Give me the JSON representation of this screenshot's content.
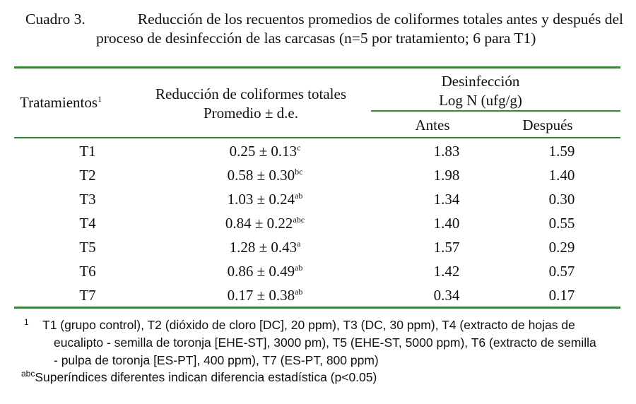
{
  "caption": {
    "number": "Cuadro 3.",
    "line1": "Reducción de los recuentos promedios de coliformes totales antes y después del",
    "line2": "proceso de desinfección de las carcasas (n=5 por tratamiento; 6 para T1)"
  },
  "table": {
    "headers": {
      "treatment": "Tratamientos",
      "treatment_sup": "1",
      "reduction_line1": "Reducción de coliformes totales",
      "reduction_line2": "Promedio ± d.e.",
      "disinfection_line1": "Desinfección",
      "disinfection_line2": "Log N (ufg/g)",
      "before": "Antes",
      "after": "Después"
    },
    "rows": [
      {
        "treatment": "T1",
        "reduction": "0.25 ± 0.13",
        "sup": "c",
        "before": "1.83",
        "after": "1.59"
      },
      {
        "treatment": "T2",
        "reduction": "0.58 ± 0.30",
        "sup": "bc",
        "before": "1.98",
        "after": "1.40"
      },
      {
        "treatment": "T3",
        "reduction": "1.03 ± 0.24",
        "sup": "ab",
        "before": "1.34",
        "after": "0.30"
      },
      {
        "treatment": "T4",
        "reduction": "0.84 ± 0.22",
        "sup": "abc",
        "before": "1.40",
        "after": "0.55"
      },
      {
        "treatment": "T5",
        "reduction": "1.28 ± 0.43",
        "sup": "a",
        "before": "1.57",
        "after": "0.29"
      },
      {
        "treatment": "T6",
        "reduction": "0.86 ± 0.49",
        "sup": "ab",
        "before": "1.42",
        "after": "0.57"
      },
      {
        "treatment": "T7",
        "reduction": "0.17 ± 0.38",
        "sup": "ab",
        "before": "0.34",
        "after": "0.17"
      }
    ]
  },
  "footnotes": {
    "note1_mark": "1",
    "note1_line1": "T1 (grupo control), T2 (dióxido de cloro [DC], 20 ppm), T3 (DC, 30 ppm), T4 (extracto de hojas de",
    "note1_line2": "eucalipto - semilla de toronja [EHE-ST], 3000 pm), T5 (EHE-ST, 5000 ppm), T6 (extracto de semilla",
    "note1_line3": "- pulpa de toronja [ES-PT], 400 ppm), T7 (ES-PT, 800 ppm)",
    "note2_mark": "abc",
    "note2_text": "Superíndices diferentes indican diferencia estadística (p<0.05)"
  },
  "colors": {
    "rule": "#2e8b2e"
  }
}
